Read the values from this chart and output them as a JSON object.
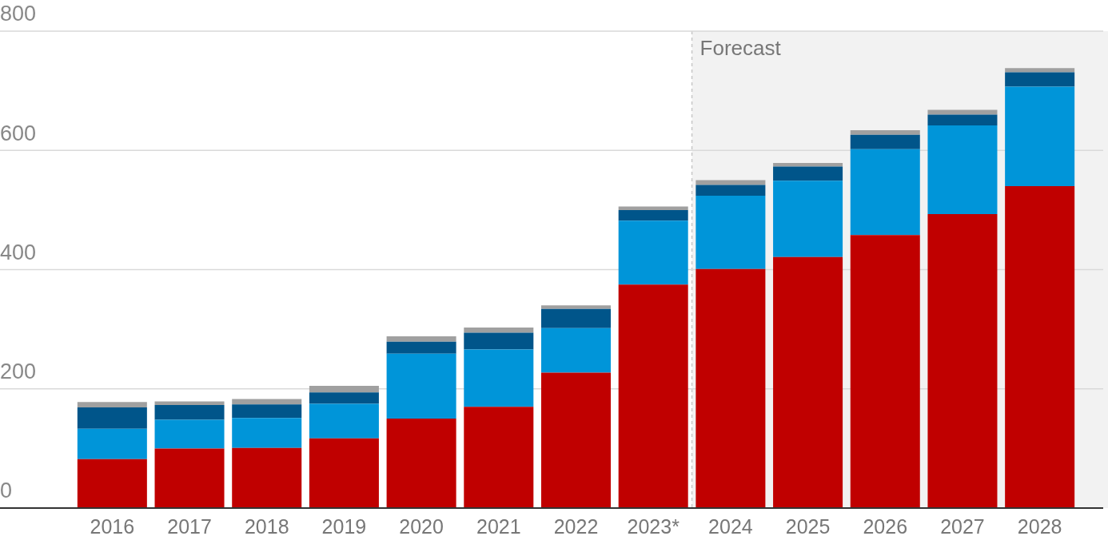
{
  "chart_data": {
    "type": "bar",
    "stacked": true,
    "categories": [
      "2016",
      "2017",
      "2018",
      "2019",
      "2020",
      "2021",
      "2022",
      "2023*",
      "2024",
      "2025",
      "2026",
      "2027",
      "2028"
    ],
    "series": [
      {
        "color": "#c00000",
        "values": [
          82,
          100,
          101,
          117,
          150,
          170,
          227,
          375,
          401,
          421,
          458,
          493,
          540
        ]
      },
      {
        "color": "#0095d9",
        "values": [
          51,
          48,
          50,
          58,
          109,
          96,
          75,
          107,
          123,
          128,
          144,
          149,
          167
        ]
      },
      {
        "color": "#00558a",
        "values": [
          36,
          25,
          23,
          19,
          20,
          28,
          32,
          18,
          18,
          24,
          24,
          18,
          24
        ]
      },
      {
        "color": "#a0a0a0",
        "values": [
          9,
          6,
          9,
          11,
          9,
          9,
          6,
          6,
          8,
          6,
          8,
          8,
          7
        ]
      }
    ],
    "ylim": [
      0,
      800
    ],
    "yticks": [
      0,
      200,
      400,
      600,
      800
    ],
    "grid": "y",
    "legend": false,
    "bands": [
      {
        "axis": "x",
        "from": "2024",
        "to": "2028",
        "label": "Forecast",
        "color": "#f2f2f2"
      }
    ],
    "ref_lines": [
      {
        "axis": "x",
        "value": "2024",
        "color": "#c8c8c8",
        "line_style": "dashed"
      }
    ]
  }
}
